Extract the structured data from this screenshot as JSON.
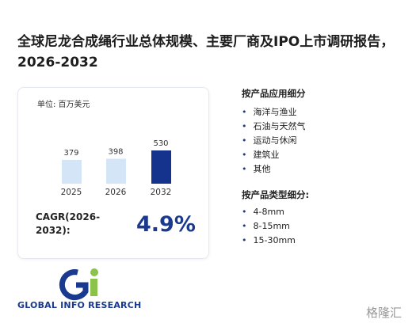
{
  "header": {
    "title": "全球尼龙合成绳行业总体规模、主要厂商及IPO上市调研报告，2026-2032"
  },
  "chart_data": {
    "type": "bar",
    "unit": "单位: 百万美元",
    "categories": [
      "2025",
      "2026",
      "2032"
    ],
    "values": [
      379,
      398,
      530
    ],
    "colors": [
      "#d5e5f8",
      "#d5e5f8",
      "#15338c"
    ]
  },
  "cagr": {
    "label": "CAGR(2026-2032):",
    "value": "4.9%"
  },
  "segments": [
    {
      "title": "按产品应用细分",
      "items": [
        "海洋与渔业",
        "石油与天然气",
        "运动与休闲",
        "建筑业",
        "其他"
      ]
    },
    {
      "title": "按产品类型细分:",
      "items": [
        "4-8mm",
        "8-15mm",
        "15-30mm"
      ]
    }
  ],
  "logo": {
    "text": "GLOBAL INFO RESEARCH"
  },
  "watermark": {
    "text": "格隆汇"
  }
}
